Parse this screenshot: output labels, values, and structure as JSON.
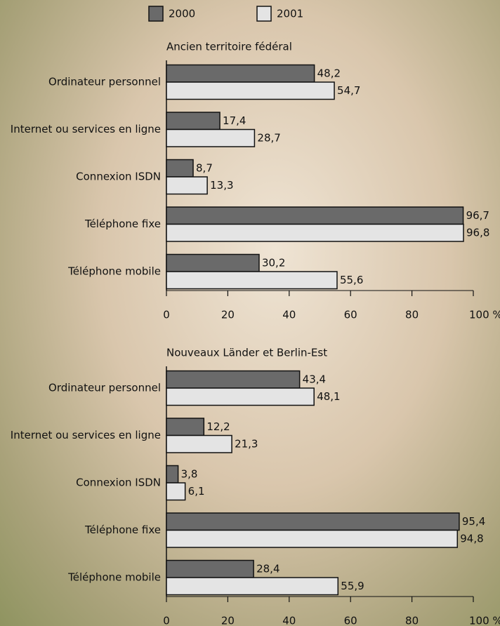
{
  "chart_data": [
    {
      "type": "hbar",
      "title": "Ancien territoire fédéral",
      "categories": [
        "Ordinateur personnel",
        "Internet ou services en ligne",
        "Connexion ISDN",
        "Téléphone fixe",
        "Téléphone mobile"
      ],
      "series": [
        {
          "name": "2000",
          "color": "#6a6a6a",
          "values": [
            48.2,
            17.4,
            8.7,
            96.7,
            30.2
          ],
          "value_labels": [
            "48,2",
            "17,4",
            "8,7",
            "96,7",
            "30,2"
          ]
        },
        {
          "name": "2001",
          "color": "#e4e4e4",
          "values": [
            54.7,
            28.7,
            13.3,
            96.8,
            55.6
          ],
          "value_labels": [
            "54,7",
            "28,7",
            "13,3",
            "96,8",
            "55,6"
          ]
        }
      ],
      "xlim": [
        0,
        100
      ],
      "xticks": [
        0,
        20,
        40,
        60,
        80,
        {
          "value": 100,
          "label": "100 %"
        }
      ]
    },
    {
      "type": "hbar",
      "title": "Nouveaux Länder et Berlin-Est",
      "categories": [
        "Ordinateur personnel",
        "Internet ou services en ligne",
        "Connexion ISDN",
        "Téléphone fixe",
        "Téléphone mobile"
      ],
      "series": [
        {
          "color": "#6a6a6a",
          "values": [
            43.4,
            12.2,
            3.8,
            95.4,
            28.4
          ],
          "value_labels": [
            "43,4",
            "12,2",
            "3,8",
            "95,4",
            "28,4"
          ]
        },
        {
          "color": "#e4e4e4",
          "values": [
            48.1,
            21.3,
            6.1,
            94.8,
            55.9
          ],
          "value_labels": [
            "48,1",
            "21,3",
            "6,1",
            "94,8",
            "55,9"
          ]
        }
      ],
      "xlim": [
        0,
        100
      ],
      "xticks": [
        0,
        20,
        40,
        60,
        80,
        {
          "value": 100,
          "label": "100 %"
        }
      ]
    }
  ]
}
